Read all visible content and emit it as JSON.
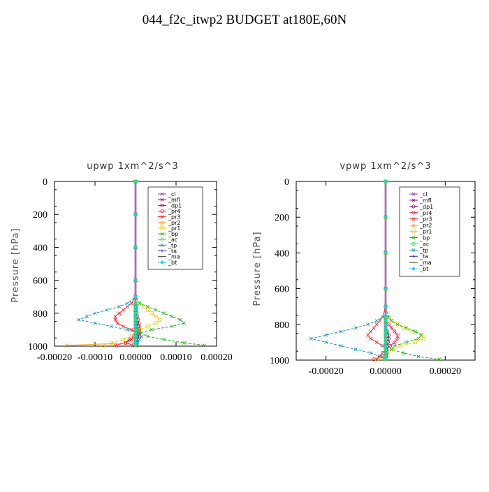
{
  "figure": {
    "title": "044_f2c_itwp2  BUDGET at180E,60N"
  },
  "legend_entries": [
    "_cl",
    "_mfl",
    "_dp1",
    "_pr4",
    "_pr3",
    "_pr2",
    "_pr1",
    "_bp",
    "_ac",
    "_tp",
    "_ta",
    "_ma",
    "_bt"
  ],
  "colors": {
    "_cl": "#8e3fd0",
    "_mfl": "#800080",
    "_dp1": "#a0004a",
    "_pr4": "#e0204a",
    "_pr3": "#ff2020",
    "_pr2": "#ff9a20",
    "_pr1": "#f0d000",
    "_bp": "#20b020",
    "_ac": "#40e040",
    "_tp": "#1890c0",
    "_ta": "#2020d0",
    "_ma": "#404040",
    "_bt": "#00e0e0"
  },
  "chart_data": [
    {
      "type": "line",
      "title": "upwp   1xm^2/s^3",
      "xlabel": "",
      "ylabel": "Pressure [hPa]",
      "xlim": [
        -0.0002,
        0.0002
      ],
      "ylim": [
        1000,
        0
      ],
      "xticks": [
        -0.0002,
        -0.0001,
        0.0,
        0.0001,
        0.0002
      ],
      "xtick_labels": [
        "-0.00020",
        "-0.00010",
        "0.00000",
        "0.00010",
        "0.00020"
      ],
      "yticks": [
        0,
        200,
        400,
        600,
        800,
        1000
      ],
      "ytick_labels": [
        "0",
        "200",
        "400",
        "600",
        "800",
        "1000"
      ],
      "legend_position": "top-right",
      "grid": false,
      "pressure": [
        0,
        200,
        400,
        600,
        700,
        740,
        760,
        780,
        800,
        820,
        840,
        860,
        880,
        900,
        920,
        940,
        960,
        980,
        995
      ],
      "series": [
        {
          "name": "_cl",
          "values": [
            0,
            0,
            0,
            0,
            0,
            0,
            0,
            0,
            0,
            0,
            0,
            0,
            0,
            0,
            0,
            0,
            0,
            0,
            0
          ]
        },
        {
          "name": "_mfl",
          "values": [
            0,
            0,
            0,
            0,
            0,
            0,
            0,
            0,
            0,
            0,
            0,
            0,
            0,
            0,
            0,
            0,
            0,
            0,
            0
          ]
        },
        {
          "name": "_dp1",
          "values": [
            0,
            0,
            0,
            0,
            0,
            0,
            0,
            0,
            0,
            0,
            0,
            3e-06,
            6e-06,
            9e-06,
            1e-05,
            8e-06,
            5e-06,
            3e-06,
            2e-06
          ]
        },
        {
          "name": "_pr4",
          "values": [
            0,
            0,
            0,
            0,
            0,
            0,
            1e-06,
            2e-06,
            3e-06,
            4e-06,
            6e-06,
            8e-06,
            1e-05,
            8e-06,
            4e-06,
            -5e-06,
            -1.5e-05,
            -2.5e-05,
            -5e-06
          ]
        },
        {
          "name": "_pr3",
          "values": [
            0,
            0,
            0,
            0,
            0,
            -1e-05,
            -2e-05,
            -3e-05,
            -4e-05,
            -5e-05,
            -5e-05,
            -4.5e-05,
            -3e-05,
            -1e-05,
            5e-06,
            4e-06,
            -1e-05,
            -2.5e-05,
            -5e-05
          ]
        },
        {
          "name": "_pr2",
          "values": [
            0,
            0,
            0,
            0,
            0,
            0,
            0,
            0,
            0,
            0,
            0,
            0,
            0,
            0,
            0,
            0,
            0,
            0,
            -0.00017
          ]
        },
        {
          "name": "_pr1",
          "values": [
            0,
            0,
            0,
            0,
            0,
            1e-05,
            2e-05,
            3e-05,
            4e-05,
            5e-05,
            6e-05,
            5e-05,
            3e-05,
            1e-05,
            3e-06,
            -1e-05,
            -3e-05,
            -6e-05,
            -8e-05
          ]
        },
        {
          "name": "_bp",
          "values": [
            0,
            0,
            0,
            0,
            0,
            1e-05,
            3e-05,
            5e-05,
            7e-05,
            9e-05,
            0.00011,
            0.00012,
            9e-05,
            4e-05,
            1e-05,
            3e-05,
            7e-05,
            0.00012,
            0.00017
          ]
        },
        {
          "name": "_ac",
          "values": [
            0,
            0,
            0,
            0,
            0,
            0,
            0,
            0,
            0,
            0,
            0,
            0,
            0,
            0,
            0,
            0,
            0,
            0,
            0
          ]
        },
        {
          "name": "_tp",
          "values": [
            0,
            0,
            0,
            0,
            0,
            -2e-05,
            -4e-05,
            -7e-05,
            -0.0001,
            -0.00012,
            -0.00014,
            -0.0001,
            -6e-05,
            -2e-05,
            5e-06,
            1.5e-05,
            1e-05,
            5e-06,
            0
          ]
        },
        {
          "name": "_ta",
          "values": [
            0,
            0,
            0,
            0,
            0,
            0,
            0,
            0,
            0,
            0,
            0,
            0,
            0,
            0,
            0,
            0,
            0,
            0,
            0
          ]
        },
        {
          "name": "_ma",
          "values": [
            0,
            0,
            0,
            0,
            0,
            0,
            0,
            0,
            0,
            0,
            0,
            0,
            0,
            0,
            0,
            0,
            0,
            0,
            0
          ]
        },
        {
          "name": "_bt",
          "values": [
            0,
            0,
            0,
            0,
            0,
            0,
            0,
            0,
            0,
            0,
            0,
            0,
            0,
            0,
            0,
            0,
            0,
            0,
            0
          ]
        }
      ]
    },
    {
      "type": "line",
      "title": "vpwp   1xm^2/s^3",
      "xlabel": "",
      "ylabel": "Pressure [hPa]",
      "xlim": [
        -0.0003,
        0.0003
      ],
      "ylim": [
        1000,
        0
      ],
      "xticks": [
        -0.0002,
        0.0,
        0.0002
      ],
      "xtick_labels": [
        "-0.00020",
        "0.00000",
        "0.00020"
      ],
      "yticks": [
        0,
        200,
        400,
        600,
        800,
        1000
      ],
      "ytick_labels": [
        "0",
        "200",
        "400",
        "600",
        "800",
        "1000"
      ],
      "legend_position": "top-right",
      "grid": false,
      "pressure": [
        0,
        200,
        400,
        600,
        700,
        760,
        780,
        800,
        820,
        840,
        860,
        880,
        900,
        920,
        940,
        960,
        980,
        995
      ],
      "series": [
        {
          "name": "_cl",
          "values": [
            0,
            0,
            0,
            0,
            0,
            0,
            0,
            0,
            0,
            0,
            0,
            0,
            0,
            0,
            0,
            0,
            0,
            0
          ]
        },
        {
          "name": "_mfl",
          "values": [
            0,
            0,
            0,
            0,
            0,
            0,
            0,
            0,
            0,
            0,
            0,
            0,
            0,
            0,
            0,
            0,
            0,
            0
          ]
        },
        {
          "name": "_dp1",
          "values": [
            0,
            0,
            0,
            0,
            0,
            0,
            0,
            0,
            0,
            5e-06,
            1e-05,
            1e-05,
            8e-06,
            5e-06,
            3e-06,
            2e-06,
            2e-06,
            0
          ]
        },
        {
          "name": "_pr4",
          "values": [
            0,
            0,
            0,
            0,
            0,
            0,
            0,
            1e-05,
            2e-05,
            3e-05,
            4e-05,
            4e-05,
            3e-05,
            1.5e-05,
            0,
            -1e-05,
            -2e-05,
            -4e-05
          ]
        },
        {
          "name": "_pr3",
          "values": [
            0,
            0,
            0,
            0,
            0,
            -1e-05,
            -2e-05,
            -3e-05,
            -4e-05,
            -5e-05,
            -6e-05,
            -5e-05,
            -3e-05,
            -1e-05,
            5e-06,
            5e-06,
            -1e-05,
            -3e-05
          ]
        },
        {
          "name": "_pr2",
          "values": [
            0,
            0,
            0,
            0,
            0,
            0,
            0,
            0,
            0,
            0,
            0,
            0,
            0,
            0,
            0,
            0,
            0,
            0
          ]
        },
        {
          "name": "_pr1",
          "values": [
            0,
            0,
            0,
            0,
            0,
            1e-05,
            2e-05,
            4e-05,
            6e-05,
            9e-05,
            0.00012,
            0.00013,
            0.0001,
            5e-05,
            2e-05,
            5e-06,
            -1e-05,
            -3e-05
          ]
        },
        {
          "name": "_bp",
          "values": [
            0,
            0,
            0,
            0,
            0,
            1e-05,
            2e-05,
            4e-05,
            7e-05,
            0.0001,
            0.00012,
            0.00011,
            7e-05,
            3e-05,
            2e-05,
            6e-05,
            0.00011,
            0.00018
          ]
        },
        {
          "name": "_ac",
          "values": [
            0,
            0,
            0,
            0,
            0,
            0,
            0,
            0,
            0,
            0,
            0,
            0,
            0,
            0,
            0,
            0,
            0,
            0
          ]
        },
        {
          "name": "_tp",
          "values": [
            0,
            0,
            0,
            0,
            0,
            -1e-05,
            -3e-05,
            -6e-05,
            -0.0001,
            -0.00015,
            -0.0002,
            -0.00025,
            -0.0002,
            -0.00015,
            -0.0001,
            -5e-05,
            -2e-05,
            0
          ]
        },
        {
          "name": "_ta",
          "values": [
            0,
            0,
            0,
            0,
            0,
            0,
            0,
            0,
            0,
            0,
            0,
            0,
            0,
            0,
            0,
            0,
            0,
            0
          ]
        },
        {
          "name": "_ma",
          "values": [
            0,
            0,
            0,
            0,
            0,
            0,
            0,
            0,
            0,
            0,
            0,
            0,
            0,
            0,
            0,
            0,
            0,
            0
          ]
        },
        {
          "name": "_bt",
          "values": [
            0,
            0,
            0,
            0,
            0,
            0,
            0,
            0,
            0,
            0,
            0,
            0,
            0,
            0,
            0,
            0,
            0,
            0
          ]
        }
      ]
    }
  ]
}
